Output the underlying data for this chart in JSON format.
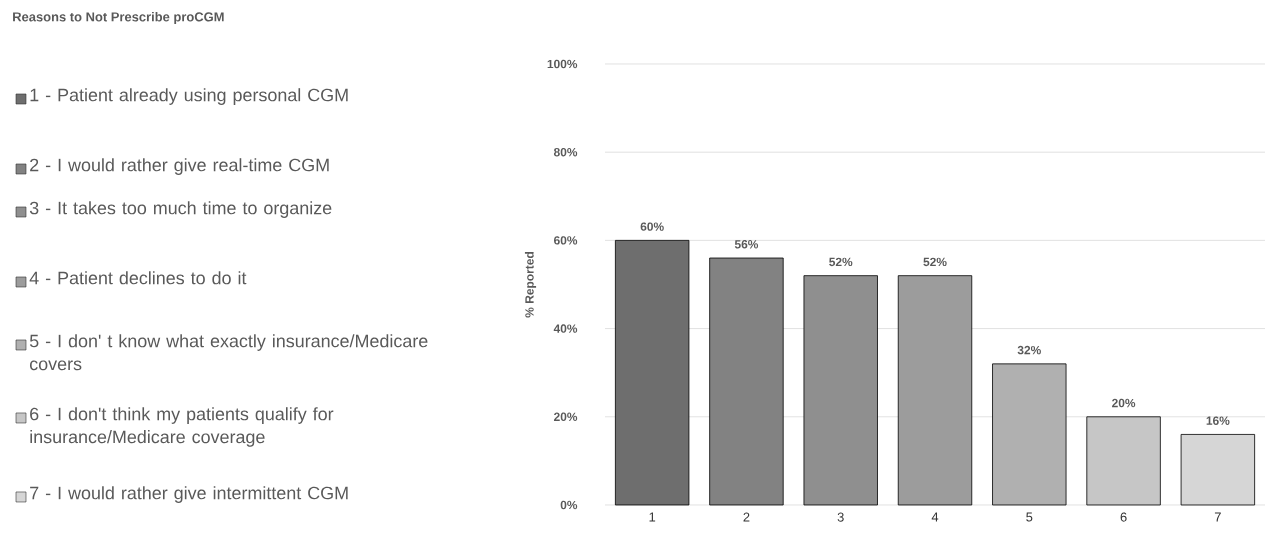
{
  "chart_data": {
    "type": "bar",
    "title": "Reasons to Not Prescribe proCGM",
    "ylabel": "% Reported",
    "categories": [
      "1",
      "2",
      "3",
      "4",
      "5",
      "6",
      "7"
    ],
    "values": [
      60,
      56,
      52,
      52,
      32,
      20,
      16
    ],
    "value_labels": [
      "60%",
      "56%",
      "52%",
      "52%",
      "32%",
      "20%",
      "16%"
    ],
    "colors": [
      "#6e6e6e",
      "#828282",
      "#8f8f8f",
      "#9c9c9c",
      "#b0b0b0",
      "#c6c6c6",
      "#d6d6d6"
    ],
    "ylim": [
      0,
      100
    ],
    "yticks": [
      {
        "value": 0,
        "label": "0%"
      },
      {
        "value": 20,
        "label": "20%"
      },
      {
        "value": 40,
        "label": "40%"
      },
      {
        "value": 60,
        "label": "60%"
      },
      {
        "value": 80,
        "label": "80%"
      },
      {
        "value": 100,
        "label": "100%"
      }
    ],
    "grid": "y",
    "annotations": [
      "1 - Patient already using personal CGM",
      "2 - I would rather give real-time CGM",
      "3 - It takes too much time to organize",
      "4 - Patient declines to do it",
      "5 - I don' t know what exactly insurance/Medicare covers",
      "6 - I don't think my patients qualify for insurance/Medicare coverage",
      "7 - I would rather give intermittent CGM"
    ]
  }
}
